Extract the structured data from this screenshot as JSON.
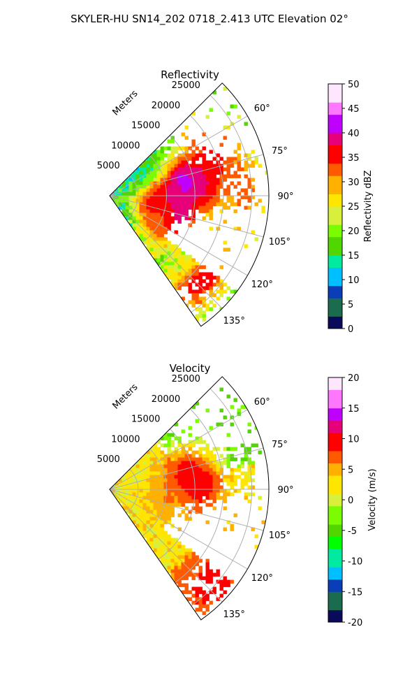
{
  "figure": {
    "title": "SKYLER-HU  SN14_202  0718_2.413 UTC Elevation 02°"
  },
  "chart_data": [
    {
      "type": "heatmap",
      "projection": "polar-sector",
      "title": "Reflectivity",
      "range_axis_label": "Meters",
      "range_ticks": [
        5000,
        10000,
        15000,
        20000,
        25000
      ],
      "range_max": 28000,
      "azimuth_range_deg": [
        45,
        145
      ],
      "azimuth_ticks": [
        "60°",
        "75°",
        "90°",
        "105°",
        "120°",
        "135°"
      ],
      "colorbar": {
        "label": "Reflectivity dBZ",
        "min": 0,
        "max": 50,
        "ticks": [
          0,
          5,
          10,
          15,
          20,
          25,
          30,
          35,
          40,
          45,
          50
        ],
        "colormap": [
          "#0a0a5a",
          "#1b6b4f",
          "#0b3db8",
          "#00bfff",
          "#00eba0",
          "#52d600",
          "#7cfc00",
          "#d8f03c",
          "#ffe600",
          "#ffb000",
          "#ff5a00",
          "#ff0000",
          "#e6007a",
          "#c000ff",
          "#ff77ff",
          "#ffe6ff"
        ]
      },
      "echo_cells": [
        {
          "azimuth_deg": 80,
          "range_m": 17000,
          "value": 38
        },
        {
          "azimuth_deg": 92,
          "range_m": 9500,
          "value": 34
        },
        {
          "azimuth_deg": 102,
          "range_m": 8000,
          "value": 36
        },
        {
          "azimuth_deg": 108,
          "range_m": 12500,
          "value": 40
        },
        {
          "azimuth_deg": 115,
          "range_m": 9500,
          "value": 34
        },
        {
          "azimuth_deg": 133,
          "range_m": 22000,
          "value": 37
        },
        {
          "azimuth_deg": 79,
          "range_m": 13500,
          "value": 42
        },
        {
          "azimuth_deg": 70,
          "range_m": 20000,
          "value": 36
        },
        {
          "azimuth_deg": 88,
          "range_m": 23500,
          "value": 33
        }
      ]
    },
    {
      "type": "heatmap",
      "projection": "polar-sector",
      "title": "Velocity",
      "range_axis_label": "Meters",
      "range_ticks": [
        5000,
        10000,
        15000,
        20000,
        25000
      ],
      "range_max": 28000,
      "azimuth_range_deg": [
        45,
        145
      ],
      "azimuth_ticks": [
        "60°",
        "75°",
        "90°",
        "105°",
        "120°",
        "135°"
      ],
      "colorbar": {
        "label": "Velocity (m/s)",
        "min": -20,
        "max": 20,
        "ticks": [
          -20,
          -15,
          -10,
          -5,
          0,
          5,
          10,
          15,
          20
        ],
        "colormap": [
          "#0a0a5a",
          "#1b6b4f",
          "#0b3db8",
          "#00bfff",
          "#00eba0",
          "#00ff00",
          "#52d600",
          "#7cfc00",
          "#d8f03c",
          "#ffe600",
          "#ffb000",
          "#ff5a00",
          "#ff0000",
          "#e6007a",
          "#c000ff",
          "#ff77ff",
          "#ffe6ff"
        ]
      },
      "echo_cells": [
        {
          "azimuth_deg": 88,
          "range_m": 16500,
          "value": 9
        },
        {
          "azimuth_deg": 80,
          "range_m": 13500,
          "value": 11
        },
        {
          "azimuth_deg": 132,
          "range_m": 22500,
          "value": 8
        },
        {
          "azimuth_deg": 128,
          "range_m": 25000,
          "value": 9
        },
        {
          "azimuth_deg": 100,
          "range_m": 10000,
          "value": 6
        }
      ]
    }
  ]
}
